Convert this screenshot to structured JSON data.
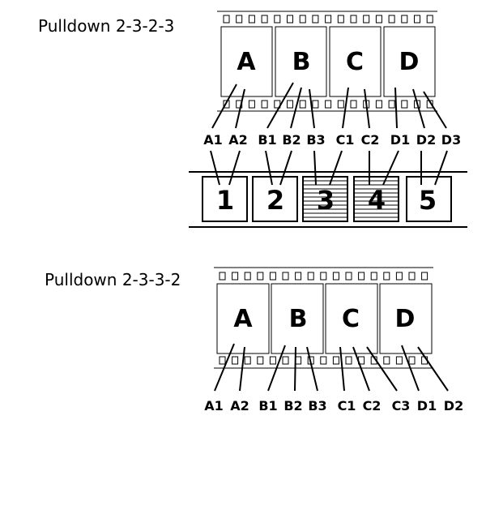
{
  "pulldown_2323": {
    "title": "Pulldown 2-3-2-3",
    "film_frames": [
      "A",
      "B",
      "C",
      "D"
    ],
    "fields": [
      "A1",
      "A2",
      "B1",
      "B2",
      "B3",
      "C1",
      "C2",
      "D1",
      "D2",
      "D3"
    ],
    "video_frames": [
      "1",
      "2",
      "3",
      "4",
      "5"
    ],
    "interlaced_frames": [
      "3",
      "4"
    ]
  },
  "pulldown_2332": {
    "title": "Pulldown 2-3-3-2",
    "film_frames": [
      "A",
      "B",
      "C",
      "D"
    ],
    "fields": [
      "A1",
      "A2",
      "B1",
      "B2",
      "B3",
      "C1",
      "C2",
      "C3",
      "D1",
      "D2"
    ]
  }
}
